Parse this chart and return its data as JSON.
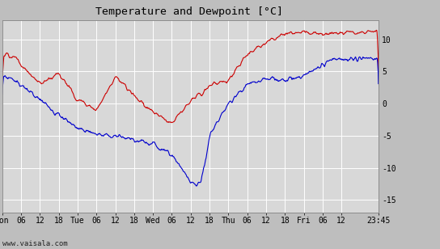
{
  "title": "Temperature and Dewpoint [°C]",
  "ylabel_right_ticks": [
    -15,
    -10,
    -5,
    0,
    5,
    10
  ],
  "ylim": [
    -17,
    13
  ],
  "x_tick_labels": [
    "Mon",
    "06",
    "12",
    "18",
    "Tue",
    "06",
    "12",
    "18",
    "Wed",
    "06",
    "12",
    "18",
    "Thu",
    "06",
    "12",
    "18",
    "Fri",
    "06",
    "12",
    "23:45"
  ],
  "x_tick_positions": [
    0,
    6,
    12,
    18,
    24,
    30,
    36,
    42,
    48,
    54,
    60,
    66,
    72,
    78,
    84,
    90,
    96,
    102,
    108,
    119.75
  ],
  "footer_text": "www.vaisala.com",
  "bg_color": "#bebebe",
  "plot_bg_color": "#d8d8d8",
  "grid_color": "#ffffff",
  "temp_color": "#cc0000",
  "dewpoint_color": "#0000cc",
  "line_width": 0.8,
  "title_fontsize": 9.5,
  "tick_fontsize": 7,
  "footer_fontsize": 6.5,
  "total_hours": 119.75,
  "n_points": 1440
}
